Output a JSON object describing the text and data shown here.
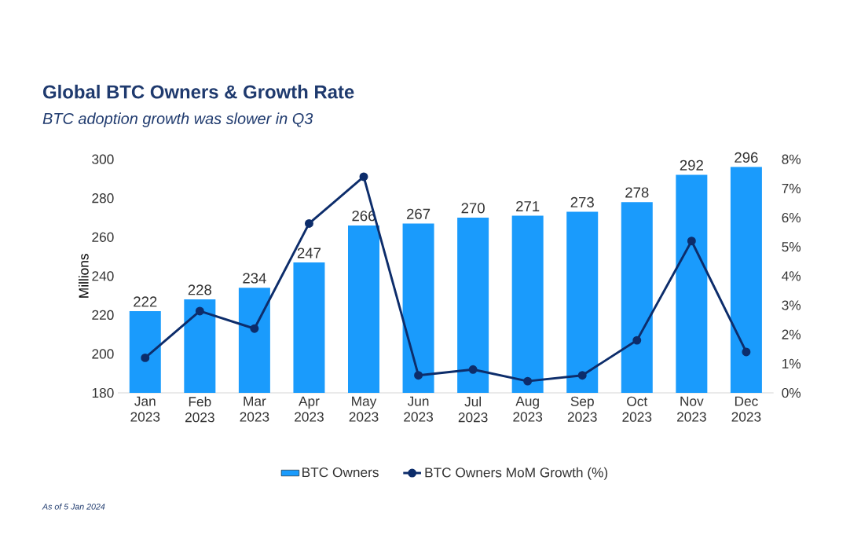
{
  "chart_data": {
    "type": "bar",
    "title": "Global BTC Owners & Growth Rate",
    "subtitle": "BTC adoption growth was slower in Q3",
    "ylabel": "Millions",
    "categories": [
      "Jan 2023",
      "Feb 2023",
      "Mar 2023",
      "Apr 2023",
      "May 2023",
      "Jun 2023",
      "Jul 2023",
      "Aug 2023",
      "Sep 2023",
      "Oct 2023",
      "Nov 2023",
      "Dec 2023"
    ],
    "series": [
      {
        "name": "BTC Owners",
        "color": "#1a9bfc",
        "values": [
          222,
          228,
          234,
          247,
          266,
          267,
          270,
          271,
          273,
          278,
          292,
          296
        ],
        "value_labels": [
          "222",
          "228",
          "234",
          "247",
          "266",
          "267",
          "270",
          "271",
          "273",
          "278",
          "292",
          "296"
        ]
      },
      {
        "name": "BTC Owners MoM Growth (%)",
        "type": "line",
        "axis": "y2",
        "color": "#0d2d6b",
        "marker": "circle",
        "values": [
          1.2,
          2.8,
          2.2,
          5.8,
          7.4,
          0.6,
          0.8,
          0.4,
          0.6,
          1.8,
          5.2,
          1.4
        ]
      }
    ],
    "ylim": [
      180,
      300
    ],
    "yticks": [
      180,
      200,
      220,
      240,
      260,
      280,
      300
    ],
    "y2lim": [
      0,
      8
    ],
    "y2ticks": [
      {
        "value": 0,
        "label": "0%"
      },
      {
        "value": 1,
        "label": "1%"
      },
      {
        "value": 2,
        "label": "2%"
      },
      {
        "value": 3,
        "label": "3%"
      },
      {
        "value": 4,
        "label": "4%"
      },
      {
        "value": 5,
        "label": "5%"
      },
      {
        "value": 6,
        "label": "6%"
      },
      {
        "value": 7,
        "label": "7%"
      },
      {
        "value": 8,
        "label": "8%"
      }
    ],
    "grid": false,
    "legend": "bottom",
    "annotations": [
      "As of 5 Jan 2024"
    ]
  }
}
